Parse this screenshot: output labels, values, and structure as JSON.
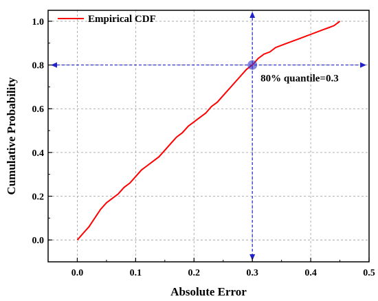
{
  "chart_data": {
    "type": "line",
    "title": "",
    "xlabel": "Absolute Error",
    "ylabel": "Cumulative Probability",
    "xlim": [
      -0.05,
      0.5
    ],
    "ylim": [
      -0.1,
      1.05
    ],
    "xticks": [
      "0.0",
      "0.1",
      "0.2",
      "0.3",
      "0.4",
      "0.5"
    ],
    "xtick_values": [
      0.0,
      0.1,
      0.2,
      0.3,
      0.4,
      0.5
    ],
    "yticks": [
      "0.0",
      "0.2",
      "0.4",
      "0.6",
      "0.8",
      "1.0"
    ],
    "ytick_values": [
      0.0,
      0.2,
      0.4,
      0.6,
      0.8,
      1.0
    ],
    "grid": true,
    "legend_position": "top-left",
    "series": [
      {
        "name": "Empirical CDF",
        "color": "#ff0000",
        "x": [
          0.0,
          0.01,
          0.02,
          0.03,
          0.04,
          0.05,
          0.06,
          0.07,
          0.08,
          0.09,
          0.1,
          0.11,
          0.12,
          0.13,
          0.14,
          0.15,
          0.16,
          0.17,
          0.18,
          0.19,
          0.2,
          0.21,
          0.22,
          0.23,
          0.24,
          0.25,
          0.26,
          0.27,
          0.28,
          0.29,
          0.3,
          0.31,
          0.32,
          0.33,
          0.34,
          0.35,
          0.36,
          0.37,
          0.38,
          0.39,
          0.4,
          0.41,
          0.42,
          0.43,
          0.44,
          0.45
        ],
        "y": [
          0.0,
          0.03,
          0.06,
          0.1,
          0.14,
          0.17,
          0.19,
          0.21,
          0.24,
          0.26,
          0.29,
          0.32,
          0.34,
          0.36,
          0.38,
          0.41,
          0.44,
          0.47,
          0.49,
          0.52,
          0.54,
          0.56,
          0.58,
          0.61,
          0.63,
          0.66,
          0.69,
          0.72,
          0.75,
          0.78,
          0.8,
          0.83,
          0.85,
          0.86,
          0.88,
          0.89,
          0.9,
          0.91,
          0.92,
          0.93,
          0.94,
          0.95,
          0.96,
          0.97,
          0.98,
          1.0
        ]
      }
    ],
    "reference_lines": {
      "color": "#2222cc",
      "x_value": 0.3,
      "y_value": 0.8
    },
    "highlight_point": {
      "x": 0.3,
      "y": 0.8,
      "color": "#3333cc"
    },
    "annotation": {
      "text": "80% quantile=0.3"
    }
  }
}
